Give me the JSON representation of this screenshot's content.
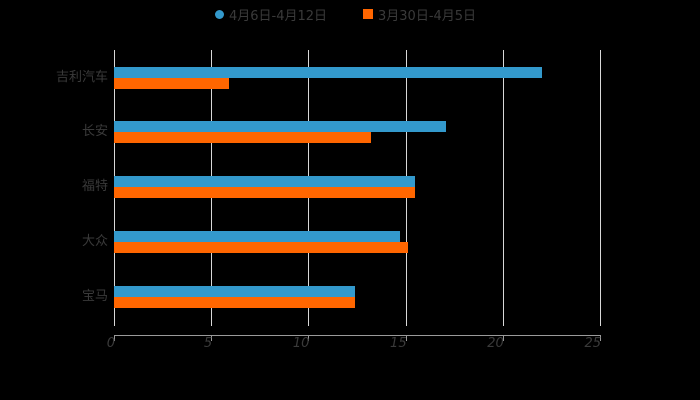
{
  "chart_data": {
    "type": "bar",
    "orientation": "horizontal",
    "title": "",
    "xlabel": "",
    "ylabel": "",
    "categories": [
      "吉利汽车",
      "长安",
      "福特",
      "大众",
      "宝马"
    ],
    "series": [
      {
        "name": "4月6日-4月12日",
        "color": "#3399cc",
        "marker": "circle",
        "values": [
          22.0,
          17.1,
          15.5,
          14.7,
          12.4
        ]
      },
      {
        "name": "3月30日-4月5日",
        "color": "#ff6600",
        "marker": "square",
        "values": [
          5.9,
          13.2,
          15.5,
          15.1,
          12.4
        ]
      }
    ],
    "xlim": [
      0,
      25
    ],
    "xticks": [
      "0",
      "5",
      "10",
      "15",
      "20",
      "25"
    ],
    "grid": {
      "vertical": true,
      "horizontal": false
    },
    "legend_position": "top"
  },
  "legend": {
    "items": [
      {
        "label": "4月6日-4月12日",
        "color": "#3399cc"
      },
      {
        "label": "3月30日-4月5日",
        "color": "#ff6600"
      }
    ]
  },
  "axis": {
    "x_ticks": [
      "0",
      "5",
      "10",
      "15",
      "20",
      "25"
    ]
  },
  "categories": [
    "吉利汽车",
    "长安",
    "福特",
    "大众",
    "宝马"
  ]
}
